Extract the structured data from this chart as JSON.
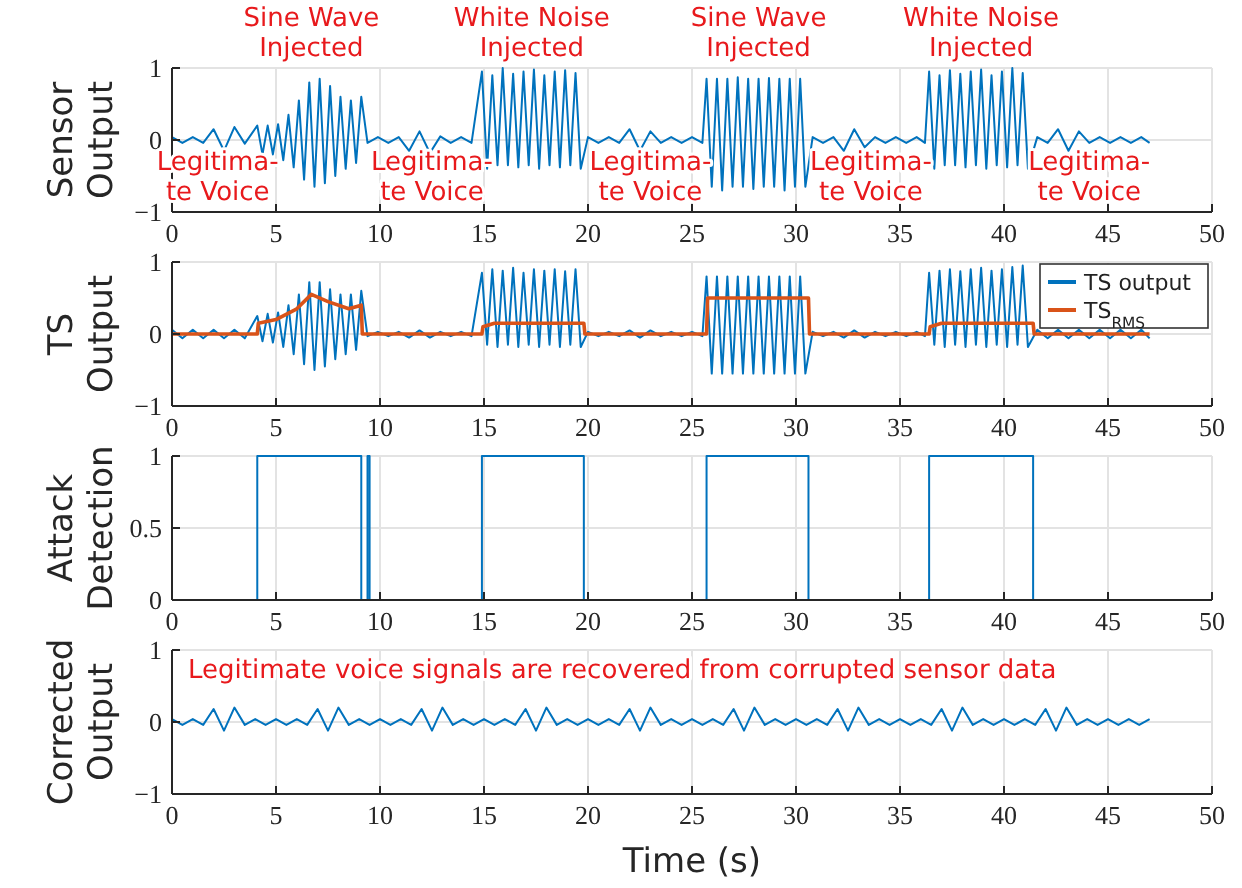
{
  "chart_data": [
    {
      "type": "line",
      "ylabel": "Sensor Output",
      "xlim": [
        0,
        50
      ],
      "xticks": [
        0,
        5,
        10,
        15,
        20,
        25,
        30,
        35,
        40,
        45,
        50
      ],
      "ylim": [
        -1,
        1
      ],
      "yticks": [
        -1,
        0,
        1
      ],
      "grid": true,
      "series": [
        {
          "color": "#0072bd",
          "x": [
            0,
            0.5,
            1,
            1.5,
            2,
            2.5,
            3,
            3.5,
            4.1,
            4.35,
            4.6,
            4.85,
            5.1,
            5.35,
            5.6,
            5.85,
            6.1,
            6.35,
            6.6,
            6.85,
            7.1,
            7.35,
            7.6,
            7.85,
            8.1,
            8.35,
            8.6,
            8.85,
            9.1,
            9.4,
            9.9,
            10.4,
            10.9,
            11.4,
            11.9,
            12.4,
            12.9,
            13.4,
            13.9,
            14.4,
            14.9,
            15.15,
            15.4,
            15.65,
            15.9,
            16.15,
            16.4,
            16.65,
            16.9,
            17.15,
            17.4,
            17.65,
            17.9,
            18.15,
            18.4,
            18.65,
            18.9,
            19.15,
            19.4,
            19.65,
            20,
            20.5,
            21,
            21.5,
            22,
            22.5,
            23,
            23.5,
            24,
            24.5,
            25,
            25.5,
            25.7,
            25.95,
            26.2,
            26.45,
            26.7,
            26.95,
            27.2,
            27.45,
            27.7,
            27.95,
            28.2,
            28.45,
            28.7,
            28.95,
            29.2,
            29.45,
            29.7,
            29.95,
            30.2,
            30.45,
            30.8,
            31.3,
            31.8,
            32.3,
            32.8,
            33.3,
            33.8,
            34.3,
            34.8,
            35.3,
            35.8,
            36.2,
            36.4,
            36.65,
            36.9,
            37.15,
            37.4,
            37.65,
            37.9,
            38.15,
            38.4,
            38.65,
            38.9,
            39.15,
            39.4,
            39.65,
            39.9,
            40.15,
            40.4,
            40.65,
            40.9,
            41.15,
            41.6,
            42.1,
            42.6,
            43.1,
            43.6,
            44.1,
            44.6,
            45.1,
            45.6,
            46.1,
            46.6,
            47
          ],
          "values": [
            0.04,
            -0.04,
            0.04,
            -0.04,
            0.15,
            -0.15,
            0.18,
            -0.05,
            0.2,
            -0.2,
            0.2,
            -0.2,
            0.22,
            -0.28,
            0.35,
            -0.38,
            0.55,
            -0.55,
            0.8,
            -0.65,
            0.85,
            -0.6,
            0.75,
            -0.5,
            0.6,
            -0.4,
            0.55,
            -0.32,
            0.6,
            -0.04,
            0.04,
            -0.04,
            0.04,
            -0.15,
            0.12,
            -0.18,
            0.05,
            -0.04,
            0.04,
            -0.04,
            0.95,
            -0.4,
            0.9,
            -0.35,
            1,
            -0.35,
            0.92,
            -0.38,
            0.95,
            -0.35,
            0.98,
            -0.4,
            0.9,
            -0.35,
            0.95,
            -0.38,
            0.97,
            -0.35,
            0.93,
            -0.4,
            0.04,
            -0.04,
            0.04,
            -0.04,
            0.15,
            -0.15,
            0.12,
            -0.04,
            0.04,
            -0.04,
            0.04,
            -0.04,
            0.85,
            -0.65,
            0.85,
            -0.7,
            0.85,
            -0.65,
            0.87,
            -0.65,
            0.85,
            -0.68,
            0.85,
            -0.65,
            0.86,
            -0.65,
            0.85,
            -0.7,
            0.85,
            -0.65,
            0.85,
            -0.65,
            0.04,
            -0.04,
            0.04,
            -0.15,
            0.15,
            -0.1,
            0.04,
            -0.04,
            0.04,
            -0.04,
            0.04,
            -0.04,
            0.95,
            -0.4,
            0.9,
            -0.35,
            0.97,
            -0.35,
            0.92,
            -0.38,
            0.95,
            -0.35,
            0.98,
            -0.4,
            0.9,
            -0.35,
            0.95,
            -0.38,
            1,
            -0.35,
            0.93,
            -0.4,
            0.04,
            -0.04,
            0.15,
            -0.15,
            0.12,
            -0.04,
            0.04,
            -0.04,
            0.04,
            -0.04,
            0.04,
            -0.04
          ]
        }
      ],
      "annotations": [
        "Sine Wave\nInjected",
        "White Noise\nInjected",
        "Sine Wave\nInjected",
        "White Noise\nInjected",
        "Legitima-\nte Voice",
        "Legitima-\nte Voice",
        "Legitima-\nte Voice",
        "Legitima-\nte Voice",
        "Legitima-\nte Voice"
      ]
    },
    {
      "type": "line",
      "ylabel": "TS Output",
      "xlim": [
        0,
        50
      ],
      "xticks": [
        0,
        5,
        10,
        15,
        20,
        25,
        30,
        35,
        40,
        45,
        50
      ],
      "ylim": [
        -1,
        1
      ],
      "yticks": [
        -1,
        0,
        1
      ],
      "grid": true,
      "legend": "top right",
      "series": [
        {
          "name": "TS output",
          "color": "#0072bd",
          "x": [
            0,
            0.5,
            1,
            1.5,
            2,
            2.5,
            3,
            3.5,
            4.1,
            4.35,
            4.6,
            4.85,
            5.1,
            5.35,
            5.6,
            5.85,
            6.1,
            6.35,
            6.6,
            6.85,
            7.1,
            7.35,
            7.6,
            7.85,
            8.1,
            8.35,
            8.6,
            8.85,
            9.1,
            9.4,
            9.9,
            10.4,
            10.9,
            11.4,
            11.9,
            12.4,
            12.9,
            13.4,
            13.9,
            14.4,
            14.9,
            15.15,
            15.4,
            15.65,
            15.9,
            16.15,
            16.4,
            16.65,
            16.9,
            17.15,
            17.4,
            17.65,
            17.9,
            18.15,
            18.4,
            18.65,
            18.9,
            19.15,
            19.4,
            19.65,
            20,
            20.5,
            21,
            21.5,
            22,
            22.5,
            23,
            23.5,
            24,
            24.5,
            25,
            25.5,
            25.7,
            25.95,
            26.2,
            26.45,
            26.7,
            26.95,
            27.2,
            27.45,
            27.7,
            27.95,
            28.2,
            28.45,
            28.7,
            28.95,
            29.2,
            29.45,
            29.7,
            29.95,
            30.2,
            30.45,
            30.8,
            31.3,
            31.8,
            32.3,
            32.8,
            33.3,
            33.8,
            34.3,
            34.8,
            35.3,
            35.8,
            36.2,
            36.4,
            36.65,
            36.9,
            37.15,
            37.4,
            37.65,
            37.9,
            38.15,
            38.4,
            38.65,
            38.9,
            39.15,
            39.4,
            39.65,
            39.9,
            40.15,
            40.4,
            40.65,
            40.9,
            41.15,
            41.6,
            42.1,
            42.6,
            43.1,
            43.6,
            44.1,
            44.6,
            45.1,
            45.6,
            46.1,
            46.6,
            47
          ],
          "values": [
            0.06,
            -0.06,
            0.06,
            -0.06,
            0.06,
            -0.06,
            0.06,
            -0.06,
            0.25,
            -0.1,
            0.28,
            -0.12,
            0.3,
            -0.18,
            0.4,
            -0.28,
            0.55,
            -0.42,
            0.72,
            -0.5,
            0.72,
            -0.45,
            0.62,
            -0.35,
            0.55,
            -0.28,
            0.55,
            -0.22,
            0.6,
            -0.03,
            0.03,
            -0.03,
            0.03,
            -0.05,
            0.05,
            -0.05,
            0.03,
            -0.03,
            0.03,
            -0.03,
            0.85,
            -0.15,
            0.9,
            -0.18,
            0.88,
            -0.15,
            0.92,
            -0.18,
            0.85,
            -0.15,
            0.9,
            -0.18,
            0.88,
            -0.15,
            0.9,
            -0.18,
            0.87,
            -0.15,
            0.9,
            -0.18,
            0.03,
            -0.03,
            0.03,
            -0.03,
            0.05,
            -0.05,
            0.05,
            -0.03,
            0.03,
            -0.03,
            0.03,
            -0.03,
            0.8,
            -0.55,
            0.8,
            -0.55,
            0.8,
            -0.55,
            0.8,
            -0.55,
            0.8,
            -0.55,
            0.8,
            -0.55,
            0.8,
            -0.55,
            0.8,
            -0.55,
            0.8,
            -0.55,
            0.8,
            -0.55,
            0.03,
            -0.03,
            0.03,
            -0.05,
            0.05,
            -0.05,
            0.03,
            -0.03,
            0.03,
            -0.03,
            0.03,
            -0.03,
            0.85,
            -0.15,
            0.88,
            -0.18,
            0.9,
            -0.15,
            0.87,
            -0.18,
            0.9,
            -0.15,
            0.92,
            -0.18,
            0.88,
            -0.15,
            0.9,
            -0.18,
            0.93,
            -0.15,
            0.95,
            -0.18,
            0.06,
            -0.06,
            0.06,
            -0.06,
            0.06,
            -0.06,
            0.06,
            -0.06,
            0.06,
            -0.06,
            0.06,
            -0.06
          ]
        },
        {
          "name": "TS$_{RMS}$",
          "color": "#d95319",
          "x": [
            0,
            4.1,
            4.15,
            5,
            6,
            6.7,
            7.5,
            8.5,
            9.1,
            9.15,
            14.9,
            14.95,
            15.5,
            19.8,
            19.85,
            25.7,
            25.75,
            30.6,
            30.65,
            36.4,
            36.45,
            37,
            41.4,
            41.45,
            47
          ],
          "values": [
            0,
            0,
            0.15,
            0.2,
            0.35,
            0.55,
            0.45,
            0.35,
            0.4,
            0,
            0,
            0.1,
            0.15,
            0.15,
            0,
            0,
            0.5,
            0.5,
            0,
            0,
            0.1,
            0.15,
            0.15,
            0,
            0
          ]
        }
      ]
    },
    {
      "type": "step",
      "ylabel": "Attack Detection",
      "xlim": [
        0,
        50
      ],
      "xticks": [
        0,
        5,
        10,
        15,
        20,
        25,
        30,
        35,
        40,
        45,
        50
      ],
      "ylim": [
        0,
        1
      ],
      "yticks": [
        0,
        0.5,
        1
      ],
      "grid": true,
      "series": [
        {
          "color": "#0072bd",
          "x": [
            0,
            4.1,
            9.1,
            9.4,
            9.5,
            14.9,
            19.8,
            25.7,
            30.6,
            36.4,
            41.4,
            47
          ],
          "values": [
            0,
            1,
            0,
            1,
            0,
            1,
            0,
            1,
            0,
            1,
            0,
            0
          ]
        }
      ]
    },
    {
      "type": "line",
      "ylabel": "Corrected Output",
      "xlabel": "Time (s)",
      "xlim": [
        0,
        50
      ],
      "xticks": [
        0,
        5,
        10,
        15,
        20,
        25,
        30,
        35,
        40,
        45,
        50
      ],
      "ylim": [
        -1,
        1
      ],
      "yticks": [
        -1,
        0,
        1
      ],
      "grid": true,
      "series": [
        {
          "color": "#0072bd",
          "x": [
            0,
            0.5,
            1,
            1.5,
            2,
            2.5,
            3,
            3.5,
            4,
            4.5,
            5,
            5.5,
            6,
            6.5,
            7,
            7.5,
            8,
            8.5,
            9,
            9.5,
            10,
            10.5,
            11,
            11.5,
            12,
            12.5,
            13,
            13.5,
            14,
            14.5,
            15,
            15.5,
            16,
            16.5,
            17,
            17.5,
            18,
            18.5,
            19,
            19.5,
            20,
            20.5,
            21,
            21.5,
            22,
            22.5,
            23,
            23.5,
            24,
            24.5,
            25,
            25.5,
            26,
            26.5,
            27,
            27.5,
            28,
            28.5,
            29,
            29.5,
            30,
            30.5,
            31,
            31.5,
            32,
            32.5,
            33,
            33.5,
            34,
            34.5,
            35,
            35.5,
            36,
            36.5,
            37,
            37.5,
            38,
            38.5,
            39,
            39.5,
            40,
            40.5,
            41,
            41.5,
            42,
            42.5,
            43,
            43.5,
            44,
            44.5,
            45,
            45.5,
            46,
            46.5,
            47
          ],
          "values": [
            0.04,
            -0.04,
            0.04,
            -0.04,
            0.18,
            -0.12,
            0.2,
            -0.04,
            0.04,
            -0.04,
            0.04,
            -0.04,
            0.04,
            -0.04,
            0.18,
            -0.12,
            0.2,
            -0.04,
            0.04,
            -0.04,
            0.04,
            -0.04,
            0.04,
            -0.04,
            0.18,
            -0.12,
            0.2,
            -0.04,
            0.04,
            -0.04,
            0.04,
            -0.04,
            0.04,
            -0.04,
            0.18,
            -0.12,
            0.2,
            -0.04,
            0.04,
            -0.04,
            0.04,
            -0.04,
            0.04,
            -0.04,
            0.18,
            -0.12,
            0.2,
            -0.04,
            0.04,
            -0.04,
            0.04,
            -0.04,
            0.04,
            -0.04,
            0.18,
            -0.12,
            0.2,
            -0.04,
            0.04,
            -0.04,
            0.04,
            -0.04,
            0.04,
            -0.04,
            0.18,
            -0.12,
            0.2,
            -0.04,
            0.04,
            -0.04,
            0.04,
            -0.04,
            0.04,
            -0.04,
            0.18,
            -0.12,
            0.2,
            -0.04,
            0.04,
            -0.04,
            0.04,
            -0.04,
            0.04,
            -0.04,
            0.18,
            -0.12,
            0.2,
            -0.04,
            0.04,
            -0.04,
            0.04,
            -0.04,
            0.04,
            -0.04,
            0.04
          ]
        }
      ],
      "annotations": [
        "Legitimate voice signals are recovered from corrupted sensor data"
      ]
    }
  ]
}
